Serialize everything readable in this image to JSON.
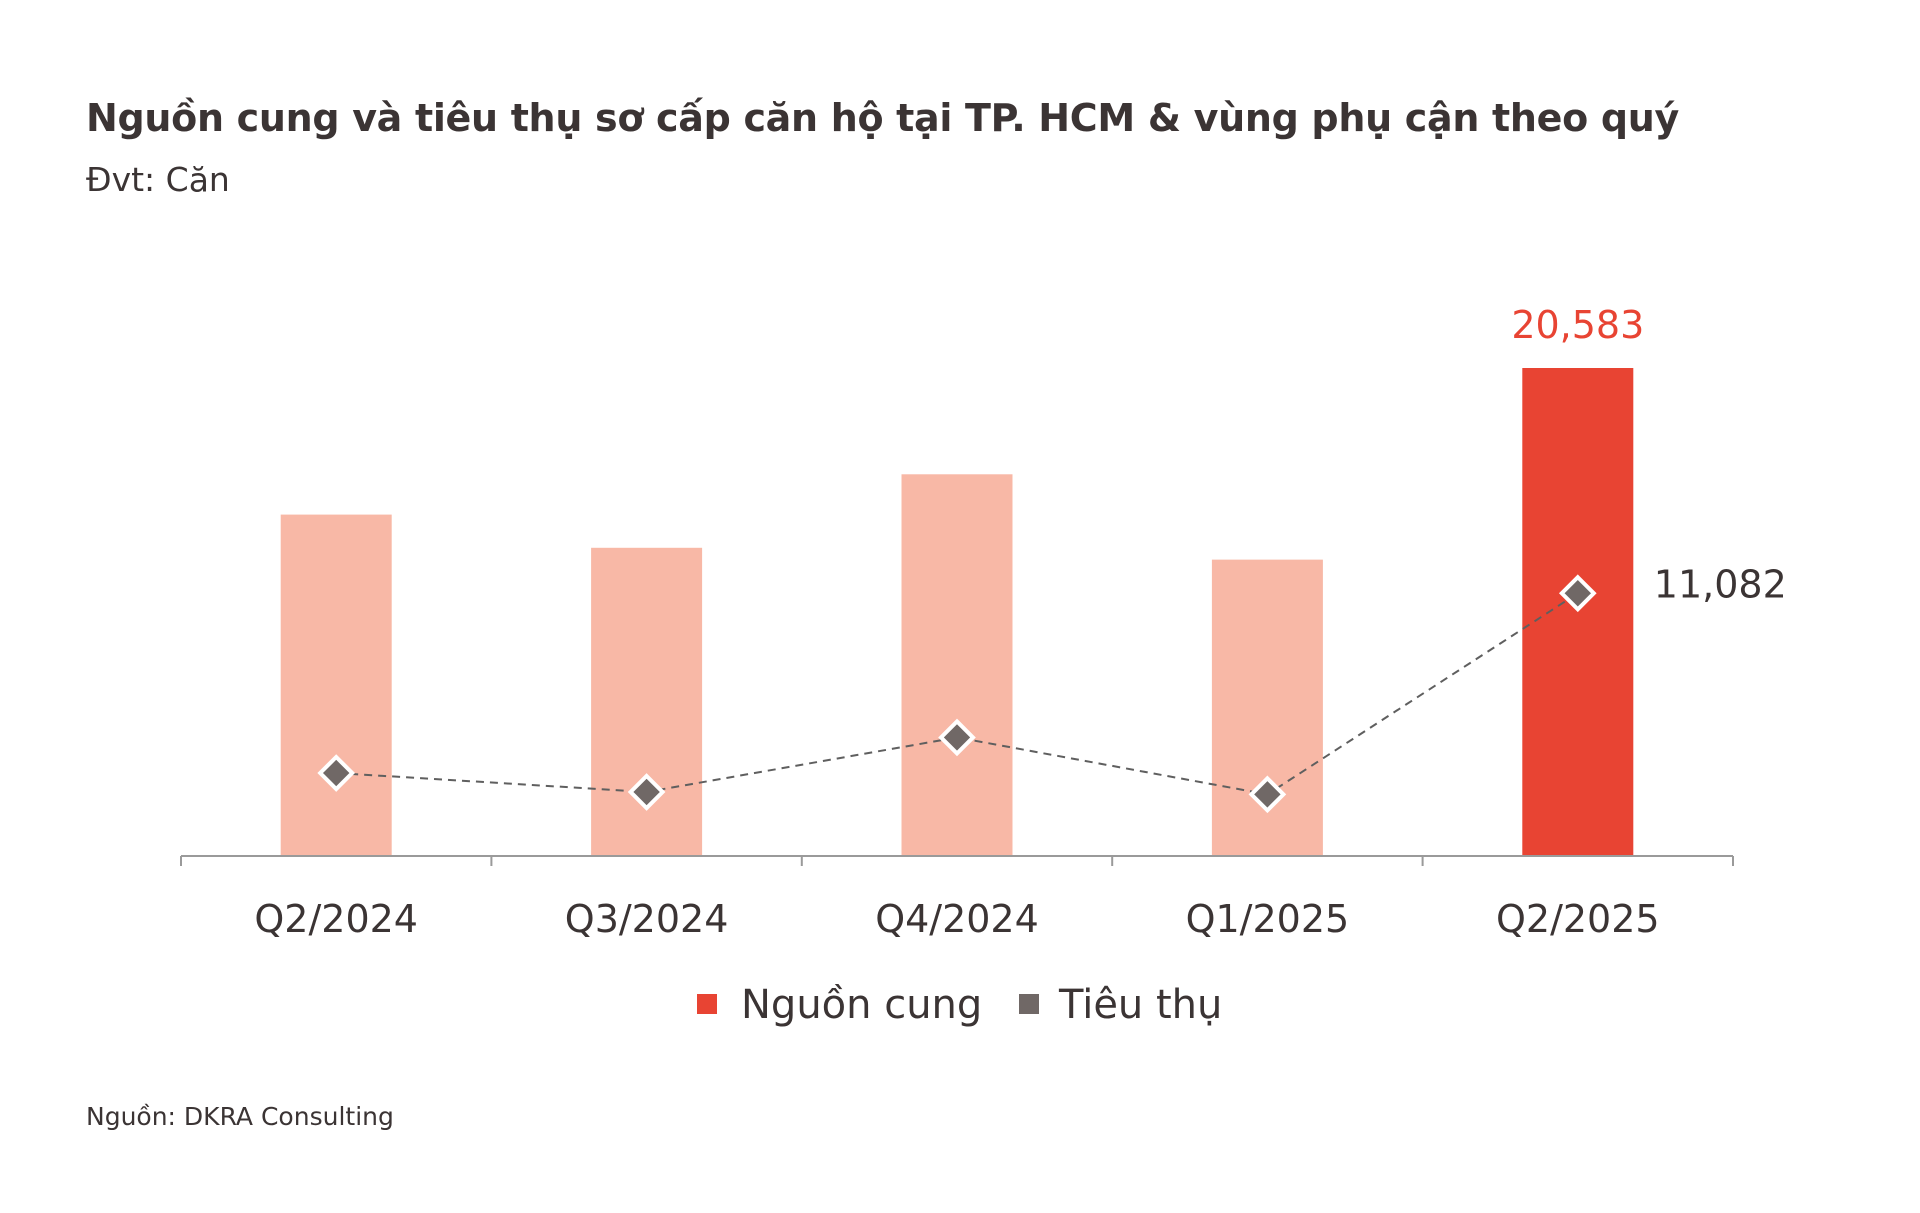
{
  "header": {
    "title": "Nguồn cung và tiêu thụ sơ cấp căn hộ tại TP. HCM & vùng phụ cận theo quý",
    "subtitle": "Đvt: Căn"
  },
  "footer": {
    "source": "Nguồn: DKRA Consulting"
  },
  "colors": {
    "supply_bar": "#f8b8a6",
    "supply_bar_highlight": "#e84433",
    "consumption_marker": "#706866",
    "connector_line": "#5f5f5f",
    "axis": "#9a9a9a",
    "highlight_label": "#e84433",
    "text": "#3b3434"
  },
  "chart_data": {
    "type": "bar",
    "categories": [
      "Q2/2024",
      "Q3/2024",
      "Q4/2024",
      "Q1/2025",
      "Q2/2025"
    ],
    "series": [
      {
        "name": "Nguồn cung",
        "type": "bar",
        "values": [
          14400,
          13000,
          16100,
          12500,
          20583
        ]
      },
      {
        "name": "Tiêu thụ",
        "type": "line",
        "values": [
          3500,
          2700,
          5000,
          2600,
          11082
        ]
      }
    ],
    "data_labels": {
      "supply_last": "20,583",
      "consumption_last": "11,082"
    },
    "highlight_index": 4,
    "ylim": [
      0,
      22000
    ],
    "grid": false,
    "legend": {
      "placement": "bottom-center",
      "items": [
        "Nguồn cung",
        "Tiêu thụ"
      ]
    }
  }
}
